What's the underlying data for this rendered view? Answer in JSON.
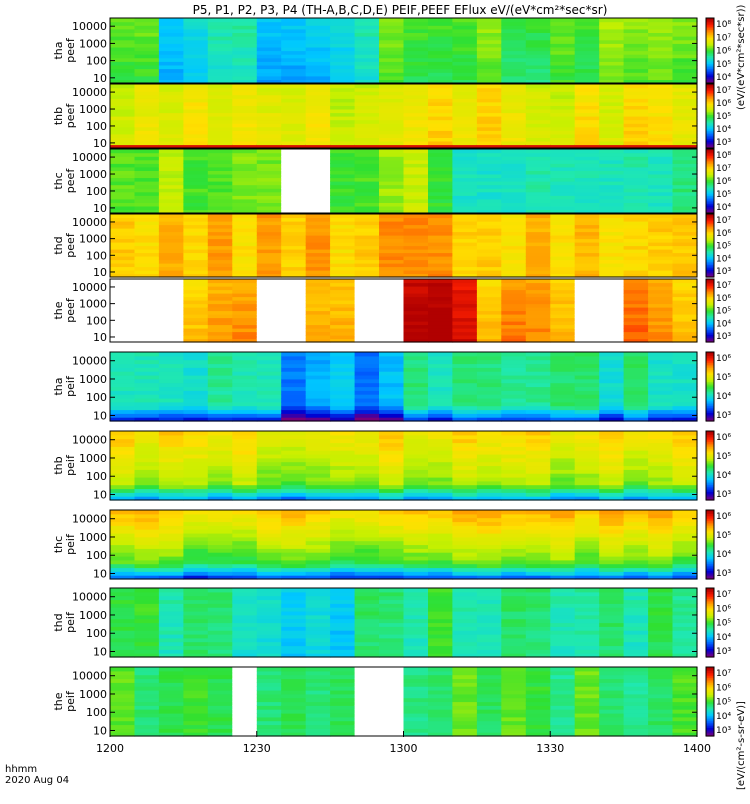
{
  "title": "P5, P1, P2, P3, P4 (TH-A,B,C,D,E) PEIF,PEEF EFlux eV/(eV*cm²*sec*sr)",
  "time_axis": {
    "ticks": [
      "1200",
      "1230",
      "1300",
      "1330",
      "1400"
    ],
    "label_line1": "hhmm",
    "label_line2": "2020 Aug 04"
  },
  "colorbar_label": "[eV/(cm²-s-sr-eV)]",
  "colorbar_label_top": "(eV/(eV*cm²*sec*sr))",
  "chart_data": {
    "type": "heatmap",
    "title": "P5, P1, P2, P3, P4 (TH-A,B,C,D,E) PEIF,PEEF EFlux eV/(eV*cm²*sec*sr)",
    "x_range": [
      "12:00",
      "14:00"
    ],
    "y_scale": "log",
    "ylim": [
      5,
      30000
    ],
    "colormap": [
      "#7a007a",
      "#0000d0",
      "#0060ff",
      "#00c8ff",
      "#20e8b0",
      "#30e030",
      "#c8f000",
      "#ffe000",
      "#ff9000",
      "#ff2000",
      "#b00000"
    ],
    "panels": [
      {
        "label1": "tha",
        "label2": "peef",
        "yticks": [
          "10",
          "100",
          "1000",
          "10000"
        ],
        "cbar": [
          "10⁸",
          "10⁷",
          "10⁶",
          "10⁵",
          "10⁴"
        ]
      },
      {
        "label1": "thb",
        "label2": "peef",
        "yticks": [
          "10",
          "100",
          "1000",
          "10000"
        ],
        "cbar": [
          "10⁷",
          "10⁶",
          "10⁵",
          "10⁴",
          "10³"
        ]
      },
      {
        "label1": "thc",
        "label2": "peef",
        "yticks": [
          "10",
          "100",
          "1000",
          "10000"
        ],
        "cbar": [
          "10⁸",
          "10⁷",
          "10⁶",
          "10⁵",
          "10⁴"
        ]
      },
      {
        "label1": "thd",
        "label2": "peef",
        "yticks": [
          "10",
          "100",
          "1000",
          "10000"
        ],
        "cbar": [
          "10⁷",
          "10⁶",
          "10⁵",
          "10⁴",
          "10³"
        ]
      },
      {
        "label1": "the",
        "label2": "peef",
        "yticks": [
          "10",
          "100",
          "1000",
          "10000"
        ],
        "cbar": [
          "10⁷",
          "10⁶",
          "10⁵",
          "10⁴",
          "10³"
        ]
      },
      {
        "label1": "tha",
        "label2": "peif",
        "yticks": [
          "10",
          "100",
          "1000",
          "10000"
        ],
        "cbar": [
          "10⁶",
          "10⁵",
          "10⁴",
          "10³"
        ]
      },
      {
        "label1": "thb",
        "label2": "peif",
        "yticks": [
          "10",
          "100",
          "1000",
          "10000"
        ],
        "cbar": [
          "10⁶",
          "10⁵",
          "10⁴",
          "10³"
        ]
      },
      {
        "label1": "thc",
        "label2": "peif",
        "yticks": [
          "10",
          "100",
          "1000",
          "10000"
        ],
        "cbar": [
          "10⁶",
          "10⁵",
          "10⁴",
          "10³"
        ]
      },
      {
        "label1": "thd",
        "label2": "peif",
        "yticks": [
          "10",
          "100",
          "1000",
          "10000"
        ],
        "cbar": [
          "10⁷",
          "10⁶",
          "10⁵",
          "10⁴",
          "10³"
        ]
      },
      {
        "label1": "the",
        "label2": "peif",
        "yticks": [
          "10",
          "100",
          "1000",
          "10000"
        ],
        "cbar": [
          "10⁷",
          "10⁶",
          "10⁵",
          "10⁴",
          "10³"
        ]
      }
    ]
  }
}
